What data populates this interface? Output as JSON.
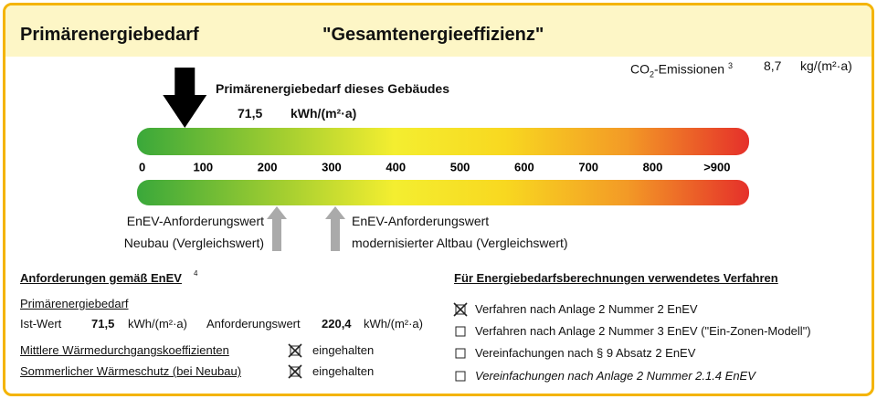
{
  "header": {
    "title": "Primärenergiebedarf",
    "subtitle": "\"Gesamtenergieeffizienz\""
  },
  "co2": {
    "label": [
      "CO",
      "2",
      "-Emissionen"
    ],
    "footnote": "3",
    "value": "8,7",
    "unit": "kg/(m²·a)"
  },
  "indicator": {
    "caption": "Primärenergiebedarf dieses Gebäudes",
    "value": 71.5,
    "label": "71,5",
    "unit": "kWh/(m²·a)"
  },
  "scale": {
    "min": 0,
    "max": 950,
    "ticks": [
      0,
      100,
      200,
      300,
      400,
      500,
      600,
      700,
      800,
      {
        "value": 900,
        "label": ">900"
      }
    ]
  },
  "references": [
    {
      "lines": [
        "EnEV-Anforderungswert",
        "Neubau (Vergleichswert)"
      ]
    },
    {
      "lines": [
        "EnEV-Anforderungswert",
        "modernisierter Altbau (Vergleichswert)"
      ]
    }
  ],
  "requirements": {
    "title": "Anforderungen gemäß EnEV",
    "footnote": "4",
    "subtitle": "Primärenergiebedarf",
    "actual_label": "Ist-Wert",
    "actual_value": "71,5",
    "actual_unit": "kWh/(m²·a)",
    "required_label": "Anforderungswert",
    "required_value": "220,4",
    "required_unit": "kWh/(m²·a)",
    "checks": [
      {
        "label": "Mittlere Wärmedurchgangskoeffizienten",
        "status": "eingehalten",
        "checked": true
      },
      {
        "label": "Sommerlicher Wärmeschutz (bei Neubau)",
        "status": "eingehalten",
        "checked": true
      }
    ]
  },
  "method": {
    "title": "Für Energiebedarfsberechnungen verwendetes Verfahren",
    "options": [
      {
        "label": "Verfahren nach Anlage 2 Nummer 2 EnEV",
        "checked": true
      },
      {
        "label": "Verfahren nach Anlage 2 Nummer 3 EnEV (\"Ein-Zonen-Modell\")",
        "checked": false
      },
      {
        "label": "Vereinfachungen nach § 9 Absatz 2 EnEV",
        "checked": false
      },
      {
        "label": "Vereinfachungen nach Anlage 2 Nummer 2.1.4 EnEV",
        "checked": false
      }
    ]
  }
}
